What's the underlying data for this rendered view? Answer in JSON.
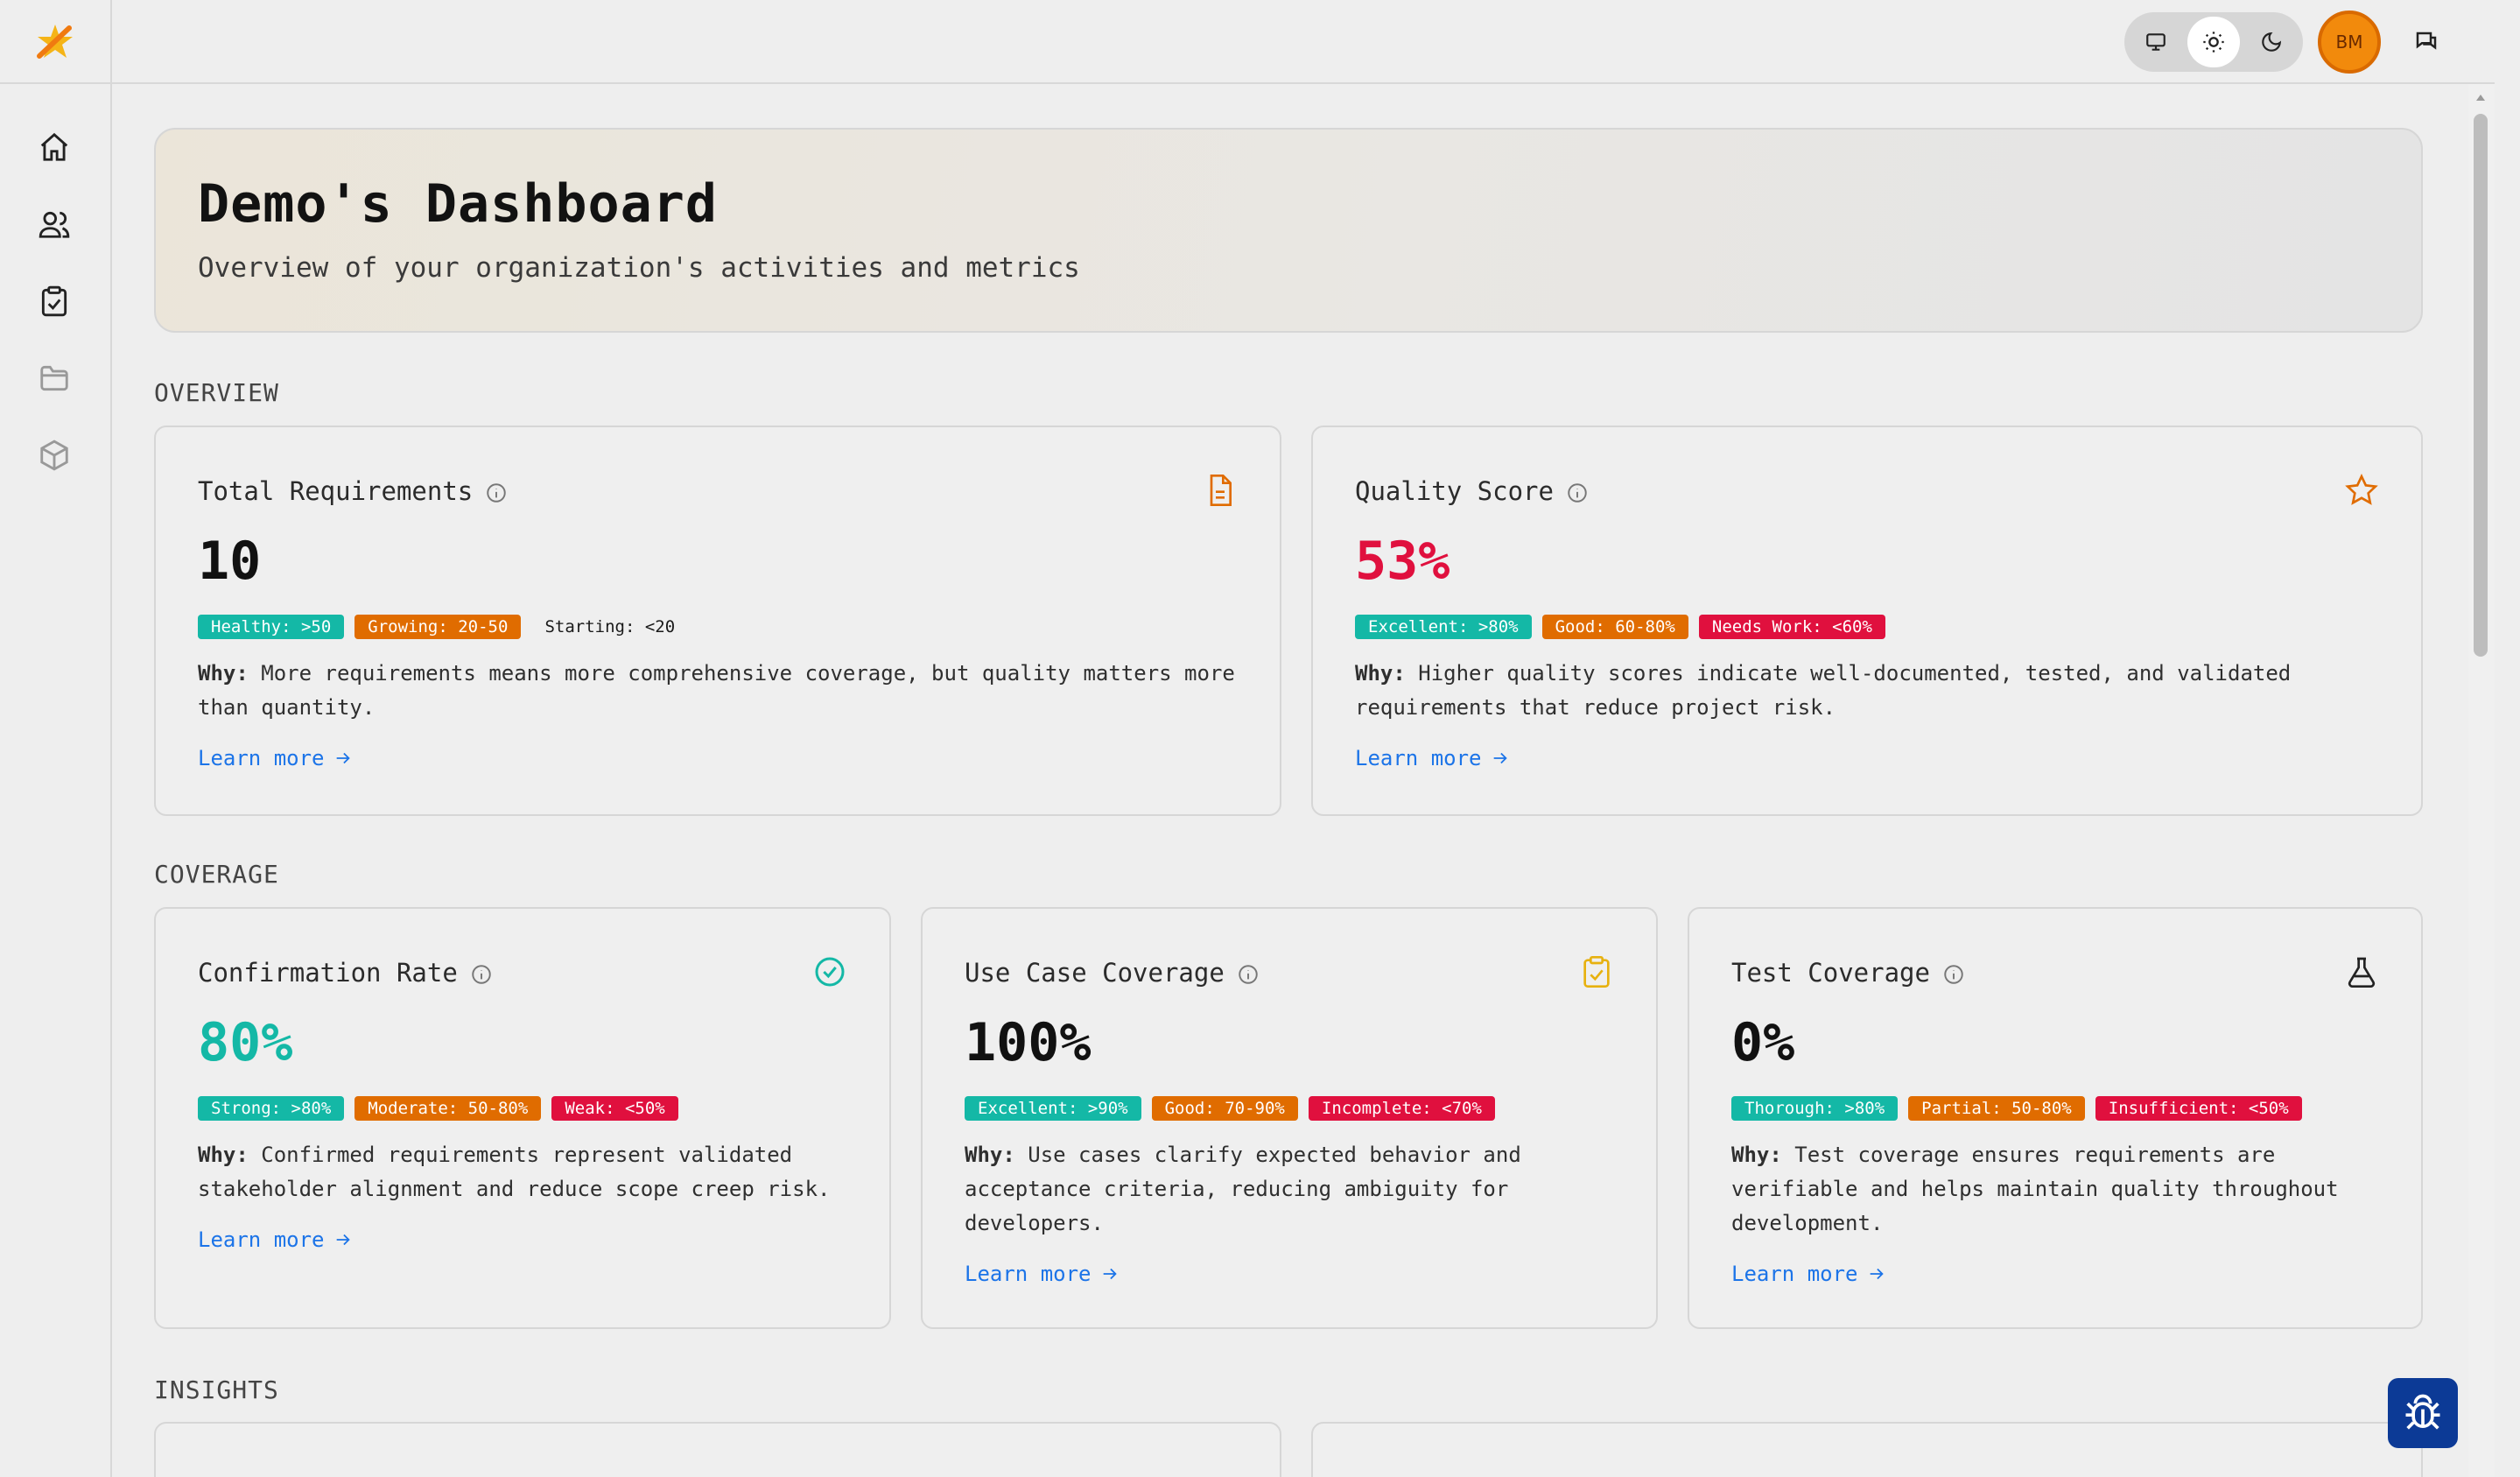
{
  "header": {
    "avatar_initials": "BM",
    "theme_options": [
      "system",
      "light",
      "dark"
    ],
    "theme_selected": "light"
  },
  "sidebar": {
    "items": [
      {
        "name": "home",
        "icon": "home-icon"
      },
      {
        "name": "users",
        "icon": "users-icon"
      },
      {
        "name": "requirements",
        "icon": "clipboard-check-icon"
      },
      {
        "name": "folders",
        "icon": "folder-icon"
      },
      {
        "name": "packages",
        "icon": "box-icon"
      }
    ]
  },
  "hero": {
    "title": "Demo's Dashboard",
    "subtitle": "Overview of your organization's activities and metrics"
  },
  "sections": {
    "overview": "OVERVIEW",
    "coverage": "COVERAGE",
    "insights": "INSIGHTS"
  },
  "cards": {
    "total_requirements": {
      "title": "Total Requirements",
      "value": "10",
      "badges": [
        "Healthy: >50",
        "Growing: 20-50",
        "Starting: <20"
      ],
      "why_label": "Why:",
      "why_line1": " More requirements means more comprehensive coverage, but quality matters more",
      "why_line2": "than quantity.",
      "learn_more": "Learn more"
    },
    "quality_score": {
      "title": "Quality Score",
      "value": "53%",
      "badges": [
        "Excellent: >80%",
        "Good: 60-80%",
        "Needs Work: <60%"
      ],
      "why_label": "Why:",
      "why_line1": " Higher quality scores indicate well-documented, tested, and validated",
      "why_line2": "requirements that reduce project risk.",
      "learn_more": "Learn more"
    },
    "confirmation_rate": {
      "title": "Confirmation Rate",
      "value": "80%",
      "badges": [
        "Strong: >80%",
        "Moderate: 50-80%",
        "Weak: <50%"
      ],
      "why_label": "Why:",
      "why_line1": " Confirmed requirements represent validated",
      "why_line2": "stakeholder alignment and reduce scope creep risk.",
      "learn_more": "Learn more"
    },
    "use_case_coverage": {
      "title": "Use Case Coverage",
      "value": "100%",
      "badges": [
        "Excellent: >90%",
        "Good: 70-90%",
        "Incomplete: <70%"
      ],
      "why_label": "Why:",
      "why_line1": " Use cases clarify expected behavior and",
      "why_line2": "acceptance criteria, reducing ambiguity for",
      "why_line3": "developers.",
      "learn_more": "Learn more"
    },
    "test_coverage": {
      "title": "Test Coverage",
      "value": "0%",
      "badges": [
        "Thorough: >80%",
        "Partial: 50-80%",
        "Insufficient: <50%"
      ],
      "why_label": "Why:",
      "why_line1": " Test coverage ensures requirements are",
      "why_line2": "verifiable and helps maintain quality throughout",
      "why_line3": "development.",
      "learn_more": "Learn more"
    }
  },
  "colors": {
    "teal": "#14b8a6",
    "orange": "#e06c00",
    "red": "#e0103e",
    "link": "#1c74e8",
    "quality_value": "#e0103e",
    "confirmation_value": "#14b8a6"
  }
}
